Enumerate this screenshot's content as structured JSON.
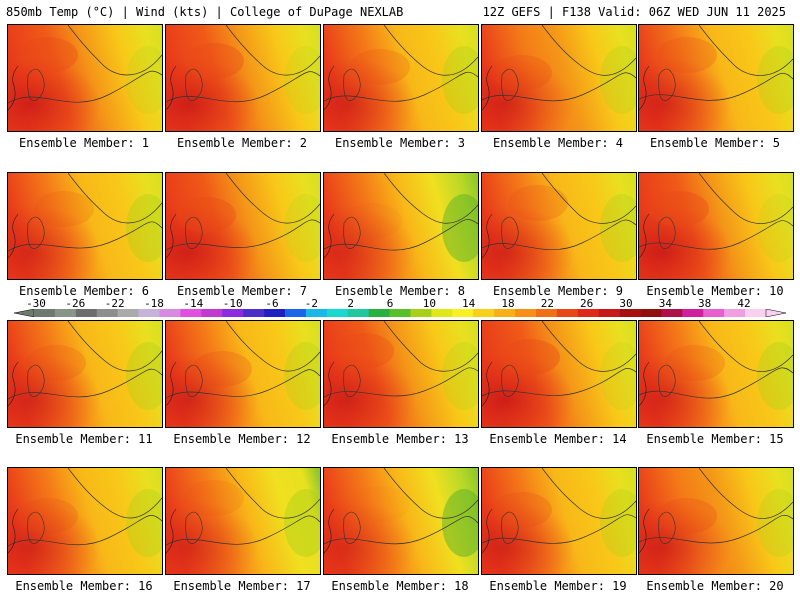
{
  "header": {
    "title_left": "850mb Temp (°C) | Wind (kts) | College of DuPage NEXLAB",
    "title_right": "12Z GEFS | F138 Valid: 06Z WED JUN 11 2025"
  },
  "panels": [
    {
      "label": "Ensemble Member: 1",
      "heat": 0.8
    },
    {
      "label": "Ensemble Member: 2",
      "heat": 0.82
    },
    {
      "label": "Ensemble Member: 3",
      "heat": 0.66
    },
    {
      "label": "Ensemble Member: 4",
      "heat": 0.72
    },
    {
      "label": "Ensemble Member: 5",
      "heat": 0.7
    },
    {
      "label": "Ensemble Member: 6",
      "heat": 0.62
    },
    {
      "label": "Ensemble Member: 7",
      "heat": 0.8
    },
    {
      "label": "Ensemble Member: 8",
      "heat": 0.52
    },
    {
      "label": "Ensemble Member: 9",
      "heat": 0.68
    },
    {
      "label": "Ensemble Member: 10",
      "heat": 0.84
    },
    {
      "label": "Ensemble Member: 11",
      "heat": 0.66
    },
    {
      "label": "Ensemble Member: 12",
      "heat": 0.7
    },
    {
      "label": "Ensemble Member: 13",
      "heat": 0.76
    },
    {
      "label": "Ensemble Member: 14",
      "heat": 0.84
    },
    {
      "label": "Ensemble Member: 15",
      "heat": 0.66
    },
    {
      "label": "Ensemble Member: 16",
      "heat": 0.66
    },
    {
      "label": "Ensemble Member: 17",
      "heat": 0.58
    },
    {
      "label": "Ensemble Member: 18",
      "heat": 0.5
    },
    {
      "label": "Ensemble Member: 19",
      "heat": 0.7
    },
    {
      "label": "Ensemble Member: 20",
      "heat": 0.72
    }
  ],
  "colorbar": {
    "labels": [
      "-30",
      "-26",
      "-22",
      "-18",
      "-14",
      "-10",
      "-6",
      "-2",
      "2",
      "6",
      "10",
      "14",
      "18",
      "22",
      "26",
      "30",
      "34",
      "38",
      "42"
    ],
    "colors": [
      "#6e7a6e",
      "#8a958a",
      "#6d6d6d",
      "#8e8e8e",
      "#aaaaaa",
      "#c6b3d9",
      "#d98ae0",
      "#e04fe0",
      "#c03ad0",
      "#8a2be2",
      "#4b2fc8",
      "#2020c0",
      "#1a66e8",
      "#18b8e8",
      "#18d8d0",
      "#20c8a0",
      "#28b040",
      "#58c028",
      "#a8d018",
      "#e0e818",
      "#f8f020",
      "#f8d018",
      "#f8b018",
      "#f89018",
      "#f07018",
      "#e84818",
      "#e02818",
      "#c81818",
      "#a81010",
      "#901010",
      "#b01048",
      "#d020a0",
      "#e860d0",
      "#f0a0e0",
      "#f8d0f0"
    ]
  }
}
